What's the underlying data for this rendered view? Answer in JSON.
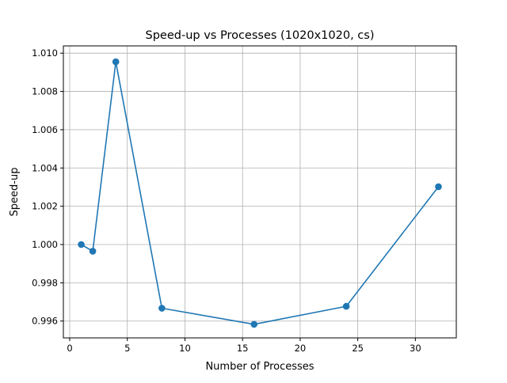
{
  "chart_data": {
    "type": "line",
    "title": "Speed-up vs Processes (1020x1020, cs)",
    "xlabel": "Number of Processes",
    "ylabel": "Speed-up",
    "xlim": [
      -0.55,
      33.55
    ],
    "ylim": [
      0.99512,
      1.01038
    ],
    "xticks": [
      0,
      5,
      10,
      15,
      20,
      25,
      30
    ],
    "xtick_labels": [
      "0",
      "5",
      "10",
      "15",
      "20",
      "25",
      "30"
    ],
    "yticks": [
      0.996,
      0.998,
      1.0,
      1.002,
      1.004,
      1.006,
      1.008,
      1.01
    ],
    "ytick_labels": [
      "0.996",
      "0.998",
      "1.000",
      "1.002",
      "1.004",
      "1.006",
      "1.008",
      "1.010"
    ],
    "grid": true,
    "series": [
      {
        "x": [
          1,
          2,
          4,
          8,
          16,
          24,
          32
        ],
        "y": [
          1.0,
          0.99965,
          1.00955,
          0.99667,
          0.99583,
          0.99677,
          1.00302
        ],
        "color": "#1f77b4",
        "marker": "circle"
      }
    ]
  }
}
